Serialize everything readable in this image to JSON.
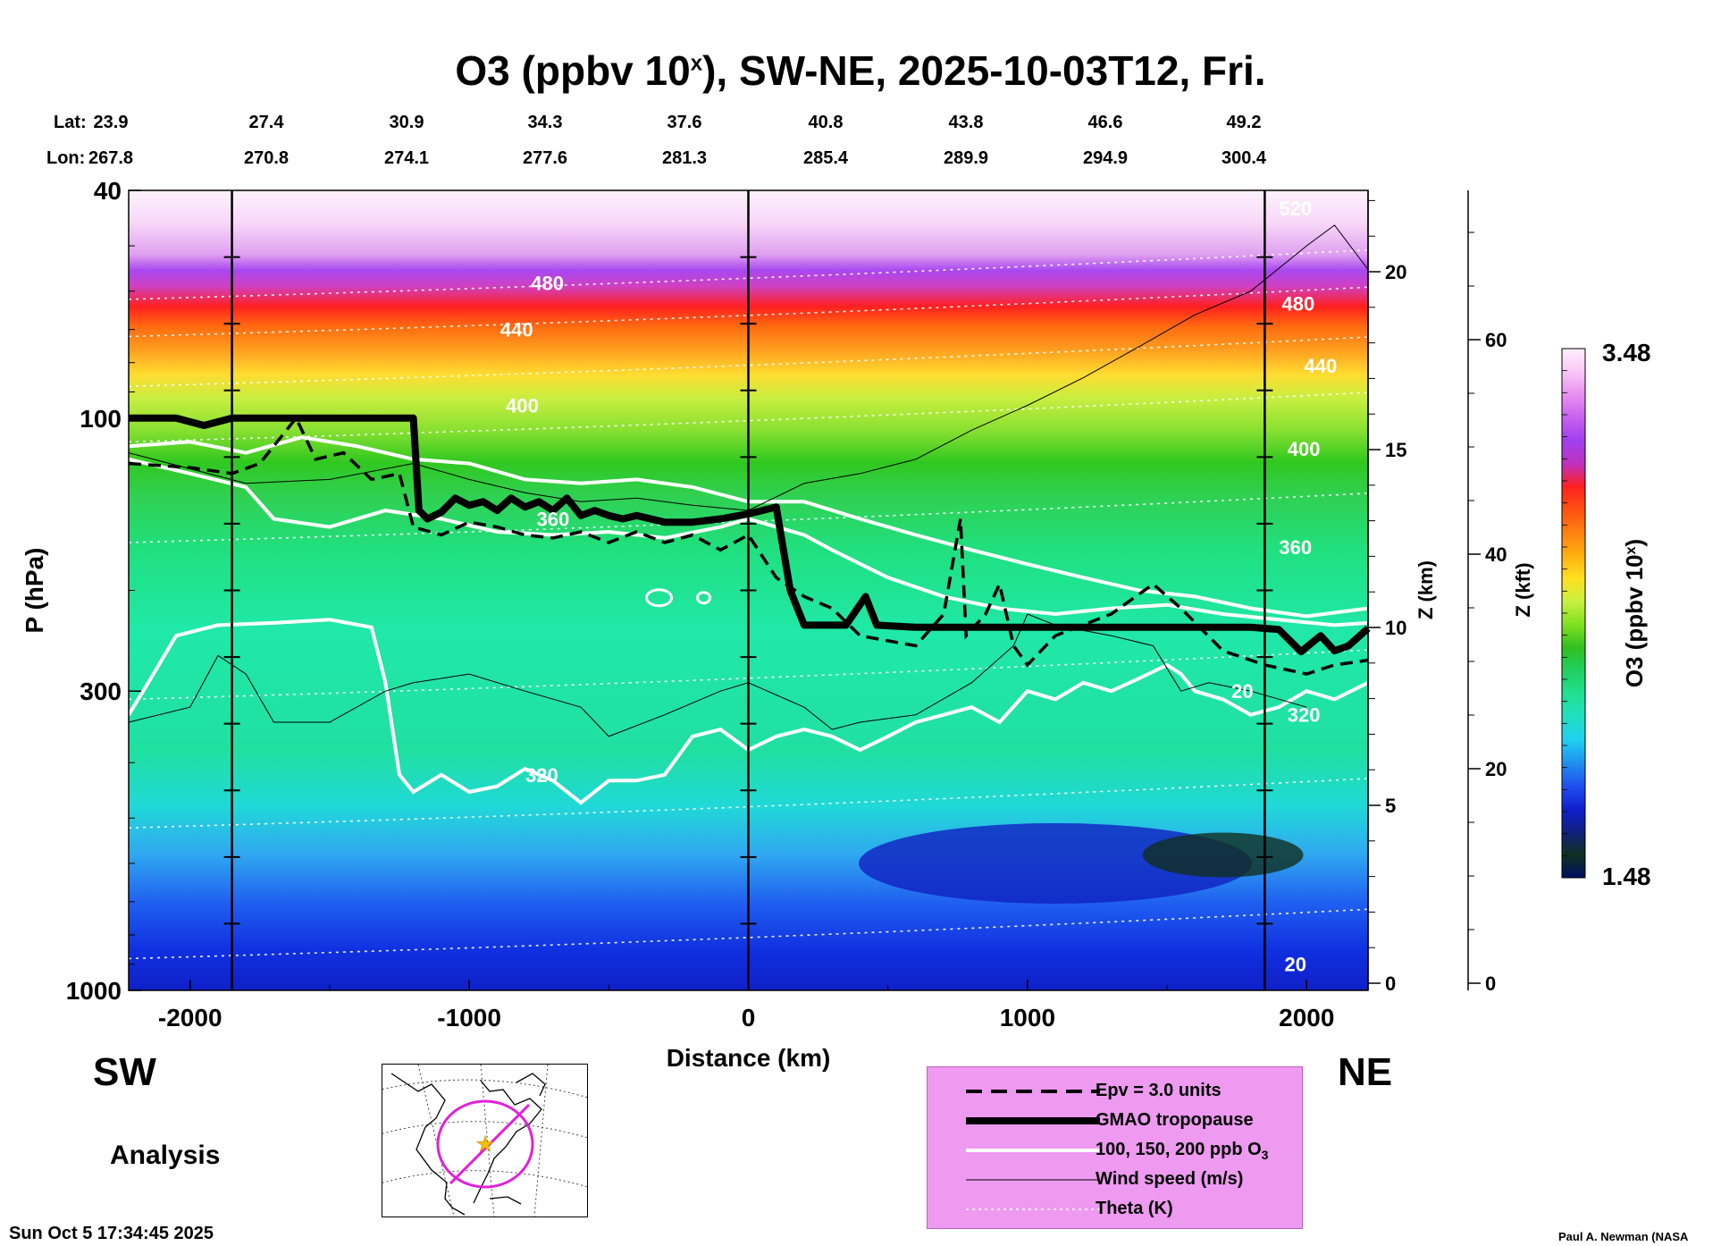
{
  "title": {
    "prefix": "O3 (ppbv 10",
    "sup": "x",
    "suffix": "), SW-NE, 2025-10-03T12, Fri."
  },
  "latlon": {
    "lat_label": "Lat:",
    "lon_label": "Lon:",
    "lat": [
      "23.9",
      "27.4",
      "30.9",
      "34.3",
      "37.6",
      "40.8",
      "43.8",
      "46.6",
      "49.2"
    ],
    "lon": [
      "267.8",
      "270.8",
      "274.1",
      "277.6",
      "281.3",
      "285.4",
      "289.9",
      "294.9",
      "300.4"
    ]
  },
  "direction": {
    "left": "SW",
    "right": "NE"
  },
  "analysis_label": "Analysis",
  "timestamp": "Sun Oct  5 17:34:45 2025",
  "credit": "Paul A. Newman (NASA",
  "colorbar": {
    "max_label": "3.48",
    "min_label": "1.48",
    "label_prefix": "O3 (ppbv 10",
    "label_sup": "x",
    "label_suffix": ")",
    "colors": [
      "#ffeefc",
      "#f8c8f8",
      "#e890f0",
      "#c860f0",
      "#a040f0",
      "#c030c0",
      "#ff2020",
      "#ff5010",
      "#ff8010",
      "#ffb010",
      "#ffe020",
      "#c8f040",
      "#80e020",
      "#30c020",
      "#20d060",
      "#20e090",
      "#20e0c0",
      "#20d0f0",
      "#2090f0",
      "#2050f0",
      "#1020d0",
      "#102080",
      "#103020",
      "#001060"
    ]
  },
  "legend": {
    "items": [
      {
        "label": "Epv = 3.0 units",
        "style": "dashed"
      },
      {
        "label": "GMAO tropopause",
        "style": "thick"
      },
      {
        "label": "100, 150, 200 ppb O",
        "sub": "3",
        "style": "white"
      },
      {
        "label": "Wind speed (m/s)",
        "style": "thin"
      },
      {
        "label": "Theta (K)",
        "style": "dotted"
      }
    ]
  },
  "chart_data": {
    "type": "heatmap",
    "title": "O3 (ppbv 10^x), SW-NE, 2025-10-03T12, Fri.",
    "xlabel": "Distance (km)",
    "ylabel": "P (hPa)",
    "right_axis_1_label": "Z (km)",
    "right_axis_2_label": "Z (kft)",
    "colorbar_label": "O3 (ppbv 10^x)",
    "xlim": [
      -2220,
      2220
    ],
    "ylim": [
      1000,
      40
    ],
    "y_scale": "log",
    "x_ticks": [
      -2000,
      -1000,
      0,
      1000,
      2000
    ],
    "x_tick_labels": [
      "-2000",
      "-1000",
      "0",
      "1000",
      "2000"
    ],
    "y_ticks": [
      40,
      100,
      300,
      1000
    ],
    "y_tick_labels": [
      "40",
      "100",
      "300",
      "1000"
    ],
    "z_km_ticks": [
      0,
      5,
      10,
      15,
      20
    ],
    "z_km_tick_labels": [
      "0",
      "5",
      "10",
      "15",
      "20"
    ],
    "z_kft_ticks": [
      0,
      20,
      40,
      60
    ],
    "z_kft_tick_labels": [
      "0",
      "20",
      "40",
      "60"
    ],
    "colorbar_range": [
      1.48,
      3.48
    ],
    "vertical_markers_km": [
      -1850,
      0,
      1850
    ],
    "theta_labels": [
      {
        "text": "480",
        "x": -720,
        "p": 58
      },
      {
        "text": "440",
        "x": -830,
        "p": 70
      },
      {
        "text": "400",
        "x": -810,
        "p": 95
      },
      {
        "text": "360",
        "x": -700,
        "p": 150
      },
      {
        "text": "320",
        "x": -740,
        "p": 420
      },
      {
        "text": "520",
        "x": 1960,
        "p": 43
      },
      {
        "text": "480",
        "x": 1970,
        "p": 63
      },
      {
        "text": "440",
        "x": 2050,
        "p": 81
      },
      {
        "text": "400",
        "x": 1990,
        "p": 113
      },
      {
        "text": "360",
        "x": 1960,
        "p": 168
      },
      {
        "text": "320",
        "x": 1990,
        "p": 330
      },
      {
        "text": "20",
        "x": 1770,
        "p": 300
      },
      {
        "text": "20",
        "x": 1960,
        "p": 900
      }
    ],
    "series": [
      {
        "name": "GMAO tropopause",
        "x": [
          -2220,
          -2050,
          -1950,
          -1850,
          -1800,
          -1200,
          -1180,
          -1150,
          -1100,
          -1050,
          -1000,
          -950,
          -900,
          -850,
          -800,
          -750,
          -700,
          -650,
          -600,
          -550,
          -500,
          -450,
          -400,
          -300,
          -200,
          -100,
          0,
          50,
          100,
          150,
          200,
          350,
          420,
          460,
          600,
          800,
          1000,
          1200,
          1400,
          1600,
          1800,
          1900,
          1980,
          2050,
          2100,
          2150,
          2220
        ],
        "p": [
          100,
          100,
          103,
          100,
          100,
          100,
          145,
          150,
          146,
          138,
          142,
          140,
          145,
          138,
          143,
          140,
          145,
          138,
          148,
          145,
          148,
          150,
          148,
          152,
          152,
          150,
          147,
          145,
          143,
          200,
          230,
          230,
          205,
          230,
          232,
          232,
          232,
          232,
          232,
          232,
          232,
          234,
          256,
          240,
          255,
          250,
          233
        ]
      },
      {
        "name": "Epv = 3.0 units",
        "x": [
          -2220,
          -2000,
          -1850,
          -1750,
          -1620,
          -1550,
          -1450,
          -1350,
          -1250,
          -1200,
          -1100,
          -1000,
          -900,
          -800,
          -700,
          -600,
          -500,
          -400,
          -300,
          -200,
          -100,
          0,
          100,
          200,
          300,
          400,
          500,
          600,
          700,
          760,
          780,
          850,
          900,
          950,
          1000,
          1100,
          1300,
          1450,
          1550,
          1700,
          1850,
          2000,
          2100,
          2220
        ],
        "p": [
          120,
          122,
          125,
          120,
          100,
          118,
          115,
          128,
          125,
          155,
          160,
          152,
          155,
          160,
          162,
          158,
          165,
          158,
          165,
          160,
          170,
          160,
          190,
          205,
          215,
          240,
          245,
          250,
          220,
          150,
          240,
          220,
          195,
          250,
          270,
          240,
          220,
          195,
          215,
          255,
          270,
          280,
          270,
          265
        ]
      },
      {
        "name": "Wind speed (m/s)",
        "x": [
          -2220,
          -1800,
          -1500,
          -1200,
          -1000,
          -800,
          -600,
          -400,
          -200,
          0,
          200,
          400,
          600,
          800,
          1000,
          1200,
          1400,
          1600,
          1800,
          2000,
          2100,
          2220
        ],
        "p": [
          115,
          130,
          128,
          120,
          128,
          135,
          140,
          138,
          142,
          145,
          130,
          125,
          118,
          105,
          95,
          85,
          75,
          66,
          60,
          50,
          46,
          55
        ]
      }
    ]
  }
}
